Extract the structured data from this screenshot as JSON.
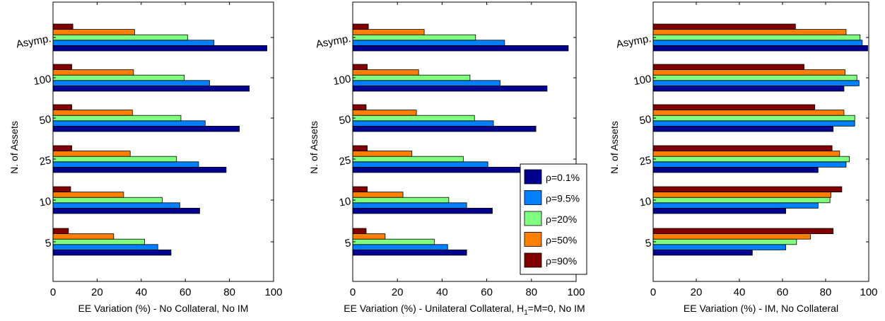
{
  "figure": {
    "rho_symbol": "ρ"
  },
  "series": [
    {
      "name": "ρ=0.1%",
      "color": "#00008F"
    },
    {
      "name": "ρ=9.5%",
      "color": "#0080FF"
    },
    {
      "name": "ρ=20%",
      "color": "#80FF80"
    },
    {
      "name": "ρ=50%",
      "color": "#FF8000"
    },
    {
      "name": "ρ=90%",
      "color": "#800000"
    }
  ],
  "chart_data": [
    {
      "type": "bar",
      "orientation": "horizontal",
      "categories": [
        "5",
        "10",
        "25",
        "50",
        "100",
        "Asymp."
      ],
      "xlabel": "EE Variation (%) - No Collateral, No IM",
      "ylabel": "N. of Assets",
      "xlim": [
        0,
        100
      ],
      "xticks": [
        0,
        20,
        40,
        60,
        80,
        100
      ],
      "grid": false,
      "series": [
        {
          "name": "ρ=0.1%",
          "values": [
            53.5,
            66.5,
            78.5,
            84.5,
            89,
            97
          ]
        },
        {
          "name": "ρ=9.5%",
          "values": [
            47.5,
            57.5,
            66,
            69,
            71,
            73
          ]
        },
        {
          "name": "ρ=20%",
          "values": [
            41.5,
            49.5,
            56,
            58,
            59.5,
            61
          ]
        },
        {
          "name": "ρ=50%",
          "values": [
            27.5,
            32,
            35,
            36,
            36.5,
            37
          ]
        },
        {
          "name": "ρ=90%",
          "values": [
            7,
            8,
            8.5,
            8.5,
            8.5,
            9
          ]
        }
      ]
    },
    {
      "type": "bar",
      "orientation": "horizontal",
      "categories": [
        "5",
        "10",
        "25",
        "50",
        "100",
        "Asymp."
      ],
      "xlabel": "EE Variation (%) - Unilateral Collateral, H",
      "xlabel_sub": "1",
      "xlabel_suffix": "=M=0, No IM",
      "ylabel": "N. of Assets",
      "xlim": [
        0,
        100
      ],
      "xticks": [
        0,
        20,
        40,
        60,
        80,
        100
      ],
      "grid": false,
      "legend_position": "bottom-right",
      "series": [
        {
          "name": "ρ=0.1%",
          "values": [
            51,
            62.5,
            75.5,
            82,
            87,
            96.5
          ]
        },
        {
          "name": "ρ=9.5%",
          "values": [
            42.5,
            51,
            60.5,
            63,
            66,
            68
          ]
        },
        {
          "name": "ρ=20%",
          "values": [
            36.5,
            43,
            49.5,
            54.5,
            52.5,
            55
          ]
        },
        {
          "name": "ρ=50%",
          "values": [
            14.5,
            22.5,
            26.5,
            28.5,
            29.5,
            32
          ]
        },
        {
          "name": "ρ=90%",
          "values": [
            6,
            6.5,
            6.5,
            6,
            6.5,
            7
          ]
        }
      ]
    },
    {
      "type": "bar",
      "orientation": "horizontal",
      "categories": [
        "5",
        "10",
        "25",
        "50",
        "100",
        "Asymp."
      ],
      "xlabel": "EE Variation (%) - IM, No Collateral",
      "ylabel": "N. of Assets",
      "xlim": [
        0,
        100
      ],
      "xticks": [
        0,
        20,
        40,
        60,
        80,
        100
      ],
      "grid": false,
      "series": [
        {
          "name": "ρ=0.1%",
          "values": [
            46,
            61.5,
            76.5,
            83.5,
            88.5,
            99.5
          ]
        },
        {
          "name": "ρ=9.5%",
          "values": [
            61.5,
            76.5,
            89.5,
            93.5,
            95.5,
            97
          ]
        },
        {
          "name": "ρ=20%",
          "values": [
            66.5,
            82,
            91,
            93.5,
            94.5,
            96
          ]
        },
        {
          "name": "ρ=50%",
          "values": [
            73,
            82.5,
            86.5,
            88.5,
            89,
            89.5
          ]
        },
        {
          "name": "ρ=90%",
          "values": [
            83.5,
            87.5,
            83,
            75,
            70,
            66
          ]
        }
      ]
    }
  ]
}
